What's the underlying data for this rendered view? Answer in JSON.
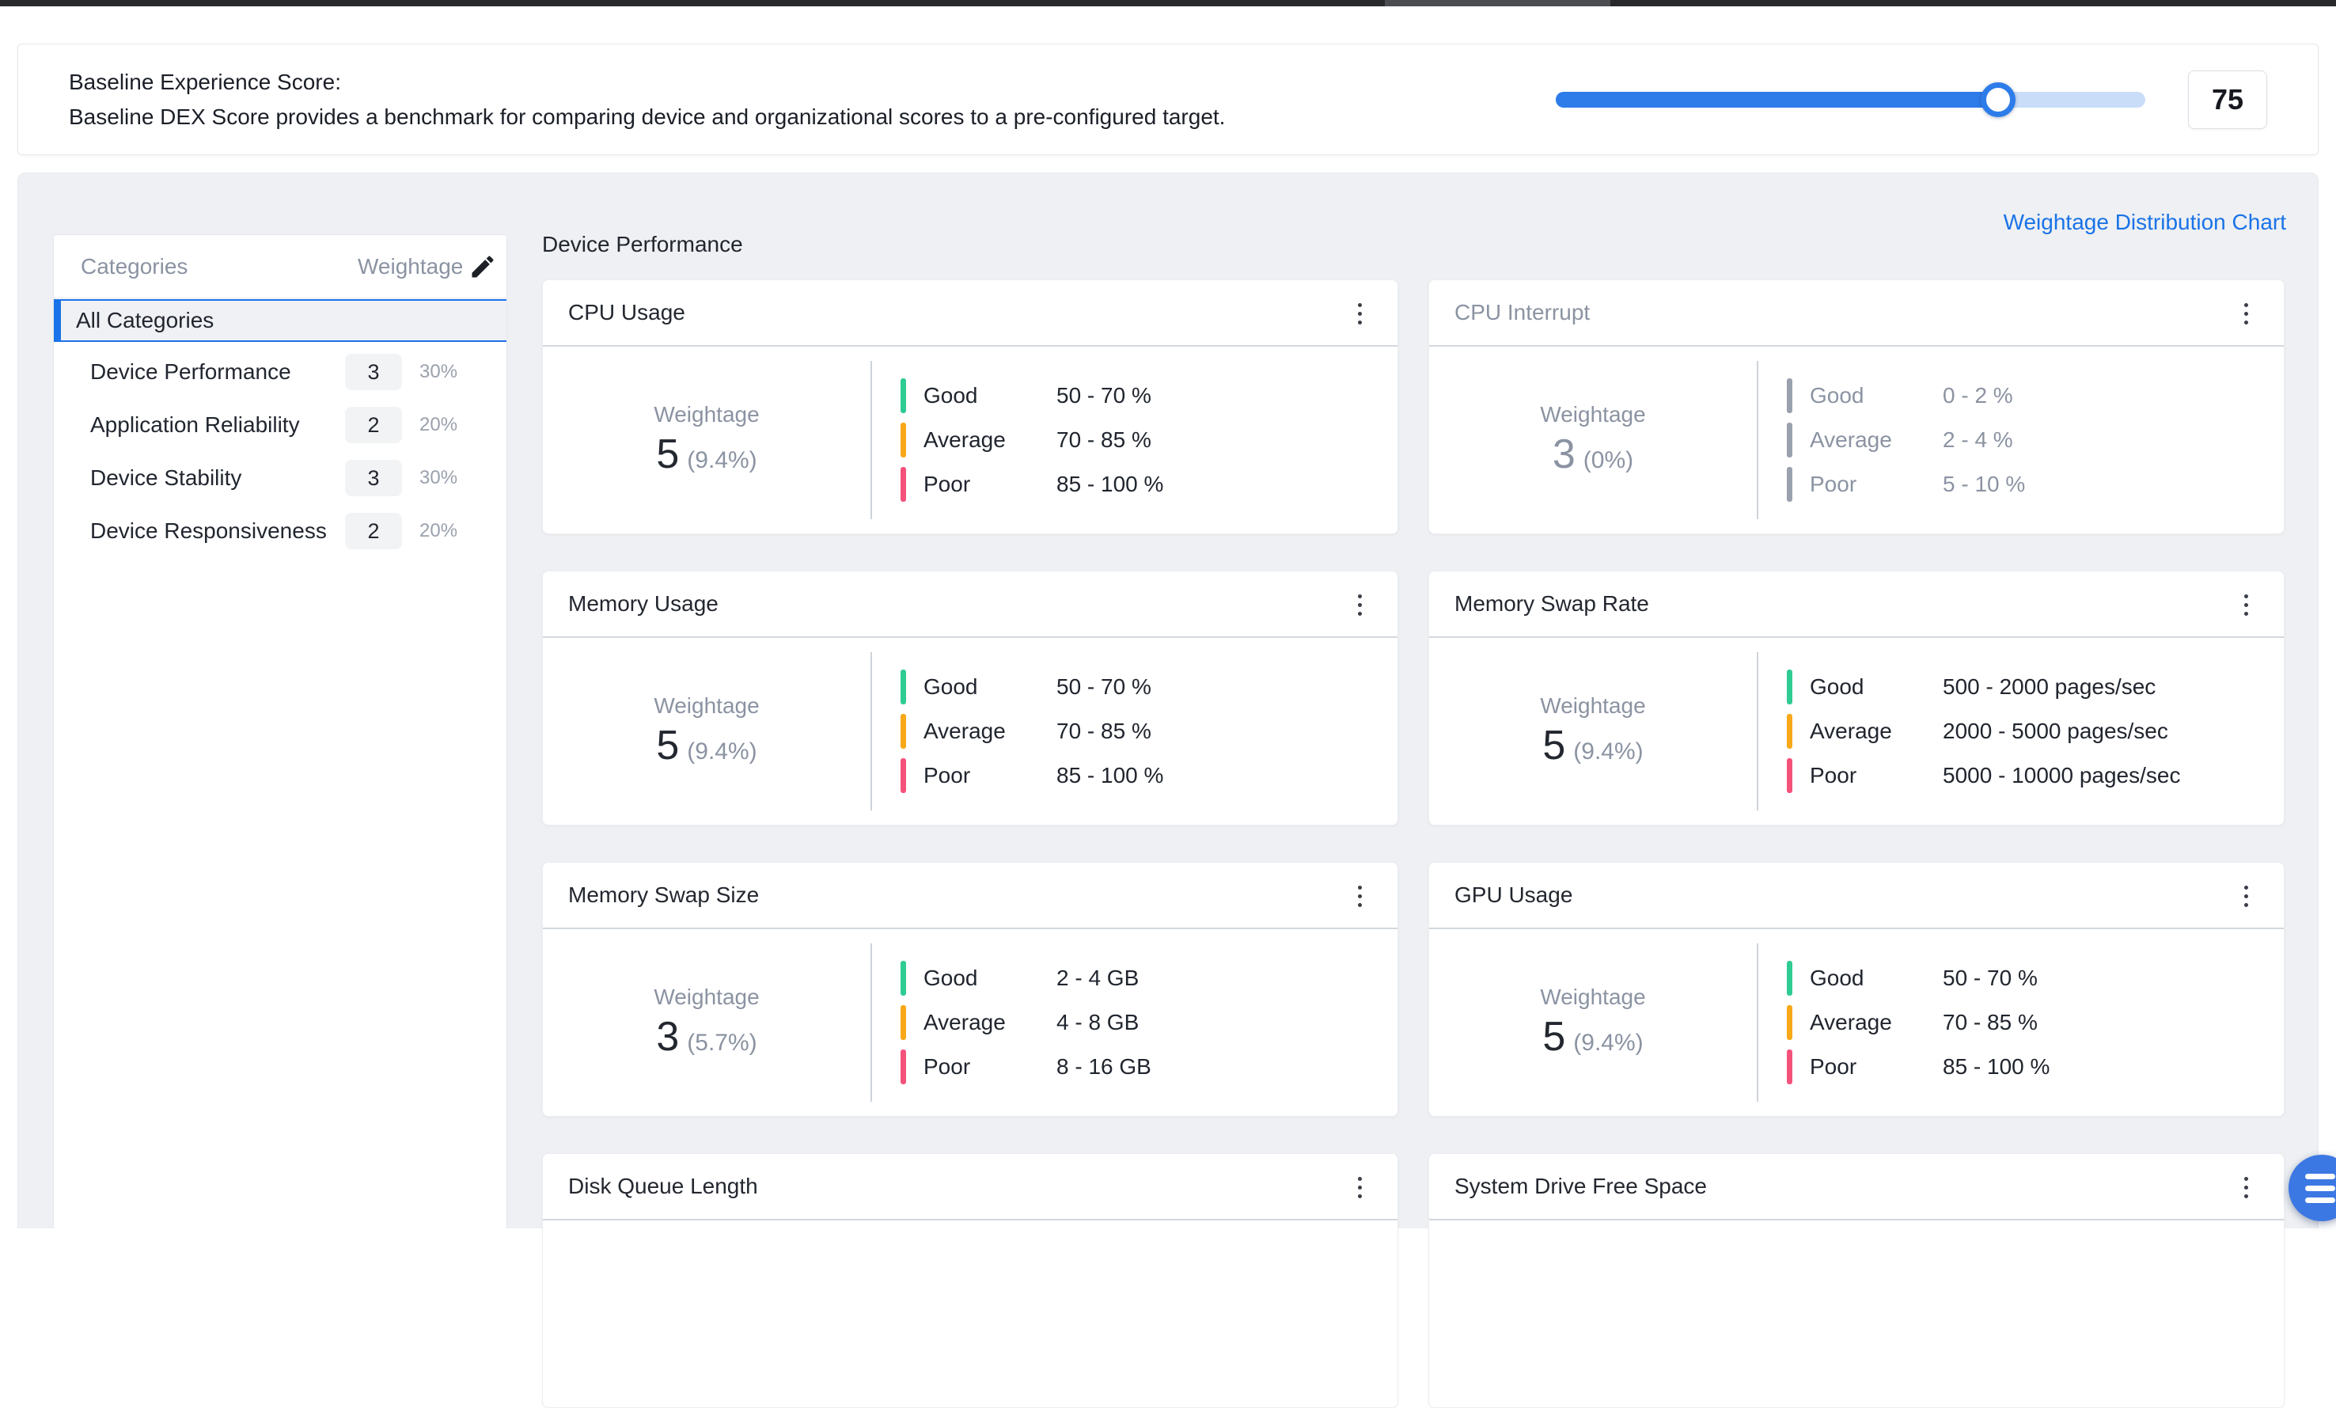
{
  "colors": {
    "accent": "#2d7cea",
    "accent2": "#1a73e8",
    "good": "#2ecb92",
    "average": "#f8a818",
    "poor": "#f5527b"
  },
  "baseline": {
    "title": "Baseline Experience Score:",
    "description": "Baseline DEX Score provides a benchmark for comparing device and organizational scores to a pre-configured target.",
    "slider_value": "75",
    "slider_percent": 75
  },
  "panel": {
    "link_label": "Weightage Distribution Chart",
    "section_title": "Device Performance"
  },
  "sidebar": {
    "col_categories": "Categories",
    "col_weightage": "Weightage",
    "selected": "All Categories",
    "items": [
      {
        "label": "Device Performance",
        "weight": "3",
        "percent": "30%"
      },
      {
        "label": "Application Reliability",
        "weight": "2",
        "percent": "20%"
      },
      {
        "label": "Device Stability",
        "weight": "3",
        "percent": "30%"
      },
      {
        "label": "Device Responsiveness",
        "weight": "2",
        "percent": "20%"
      }
    ]
  },
  "cards": [
    {
      "title": "CPU Usage",
      "state": "enabled",
      "weightage_label": "Weightage",
      "weight": "5",
      "percent": "(9.4%)",
      "thresholds": [
        {
          "level": "Good",
          "value": "50 - 70 %"
        },
        {
          "level": "Average",
          "value": "70 - 85 %"
        },
        {
          "level": "Poor",
          "value": "85 - 100 %"
        }
      ]
    },
    {
      "title": "CPU Interrupt",
      "state": "disabled",
      "weightage_label": "Weightage",
      "weight": "3",
      "percent": "(0%)",
      "thresholds": [
        {
          "level": "Good",
          "value": "0 - 2 %"
        },
        {
          "level": "Average",
          "value": "2 - 4 %"
        },
        {
          "level": "Poor",
          "value": "5 - 10 %"
        }
      ]
    },
    {
      "title": "Memory Usage",
      "state": "enabled",
      "weightage_label": "Weightage",
      "weight": "5",
      "percent": "(9.4%)",
      "thresholds": [
        {
          "level": "Good",
          "value": "50 - 70 %"
        },
        {
          "level": "Average",
          "value": "70 - 85 %"
        },
        {
          "level": "Poor",
          "value": "85 - 100 %"
        }
      ]
    },
    {
      "title": "Memory Swap Rate",
      "state": "enabled",
      "weightage_label": "Weightage",
      "weight": "5",
      "percent": "(9.4%)",
      "thresholds": [
        {
          "level": "Good",
          "value": "500 - 2000 pages/sec"
        },
        {
          "level": "Average",
          "value": "2000 - 5000 pages/sec"
        },
        {
          "level": "Poor",
          "value": "5000 - 10000 pages/sec"
        }
      ]
    },
    {
      "title": "Memory Swap Size",
      "state": "enabled",
      "weightage_label": "Weightage",
      "weight": "3",
      "percent": "(5.7%)",
      "thresholds": [
        {
          "level": "Good",
          "value": "2 - 4 GB"
        },
        {
          "level": "Average",
          "value": "4 - 8 GB"
        },
        {
          "level": "Poor",
          "value": "8 - 16 GB"
        }
      ]
    },
    {
      "title": "GPU Usage",
      "state": "enabled",
      "weightage_label": "Weightage",
      "weight": "5",
      "percent": "(9.4%)",
      "thresholds": [
        {
          "level": "Good",
          "value": "50 - 70 %"
        },
        {
          "level": "Average",
          "value": "70 - 85 %"
        },
        {
          "level": "Poor",
          "value": "85 - 100 %"
        }
      ]
    },
    {
      "title": "Disk Queue Length",
      "state": "partial"
    },
    {
      "title": "System Drive Free Space",
      "state": "partial"
    }
  ]
}
